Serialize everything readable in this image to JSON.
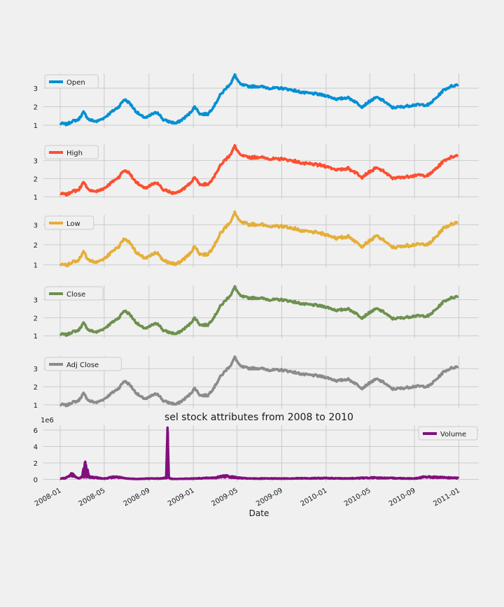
{
  "chart_data": {
    "type": "line",
    "title": "sel stock attributes from 2008 to 2010",
    "xlabel": "Date",
    "x_ticks": [
      "2008-01",
      "2008-05",
      "2008-09",
      "2009-01",
      "2009-05",
      "2009-09",
      "2010-01",
      "2010-05",
      "2010-09",
      "2011-01"
    ],
    "x_range": [
      "2008-01-01",
      "2010-12-31"
    ],
    "colors": {
      "Open": "#008fd5",
      "High": "#fc4f30",
      "Low": "#e5ae38",
      "Close": "#6d904f",
      "Adj Close": "#8b8b8b",
      "Volume": "#810f7c"
    },
    "legend_position": "top-left (Volume: top-right)",
    "grid": true,
    "price_panels": [
      {
        "name": "Open",
        "yticks": [
          1,
          2,
          3
        ],
        "ylim": [
          0.85,
          3.8
        ]
      },
      {
        "name": "High",
        "yticks": [
          1,
          2,
          3
        ],
        "ylim": [
          0.9,
          3.9
        ]
      },
      {
        "name": "Low",
        "yticks": [
          1,
          2,
          3
        ],
        "ylim": [
          0.85,
          3.5
        ]
      },
      {
        "name": "Close",
        "yticks": [
          1,
          2,
          3
        ],
        "ylim": [
          0.85,
          3.8
        ]
      },
      {
        "name": "Adj Close",
        "yticks": [
          1,
          2,
          3
        ],
        "ylim": [
          0.8,
          3.7
        ]
      }
    ],
    "volume_panel": {
      "name": "Volume",
      "offset_label": "1e6",
      "yticks": [
        "0",
        "2",
        "4",
        "6"
      ],
      "ylim": [
        -0.3,
        6.6
      ],
      "unit_scale": 1000000
    },
    "series": [
      {
        "name": "Close",
        "x": [
          "2008-01-01",
          "2008-01-20",
          "2008-02-01",
          "2008-02-20",
          "2008-03-05",
          "2008-03-20",
          "2008-04-10",
          "2008-05-01",
          "2008-05-20",
          "2008-06-10",
          "2008-06-25",
          "2008-07-10",
          "2008-07-25",
          "2008-08-10",
          "2008-08-25",
          "2008-09-10",
          "2008-09-25",
          "2008-10-10",
          "2008-10-25",
          "2008-11-15",
          "2008-12-01",
          "2008-12-20",
          "2009-01-05",
          "2009-01-20",
          "2009-02-10",
          "2009-03-01",
          "2009-03-15",
          "2009-04-01",
          "2009-04-15",
          "2009-04-25",
          "2009-05-10",
          "2009-06-01",
          "2009-07-01",
          "2009-08-01",
          "2009-09-01",
          "2009-10-01",
          "2009-11-01",
          "2009-12-01",
          "2010-01-01",
          "2010-02-01",
          "2010-03-01",
          "2010-03-20",
          "2010-04-10",
          "2010-05-01",
          "2010-05-20",
          "2010-06-10",
          "2010-07-01",
          "2010-08-01",
          "2010-09-01",
          "2010-09-20",
          "2010-10-10",
          "2010-11-01",
          "2010-11-20",
          "2010-12-10",
          "2010-12-31"
        ],
        "values": [
          1.1,
          1.05,
          1.2,
          1.3,
          1.7,
          1.3,
          1.2,
          1.4,
          1.7,
          2.0,
          2.4,
          2.2,
          1.8,
          1.5,
          1.4,
          1.6,
          1.7,
          1.3,
          1.2,
          1.1,
          1.3,
          1.6,
          2.0,
          1.6,
          1.6,
          2.1,
          2.6,
          3.0,
          3.3,
          3.7,
          3.2,
          3.1,
          3.1,
          3.0,
          3.0,
          2.9,
          2.75,
          2.7,
          2.6,
          2.4,
          2.5,
          2.3,
          2.0,
          2.3,
          2.5,
          2.3,
          1.95,
          2.0,
          2.1,
          2.1,
          2.1,
          2.5,
          2.9,
          3.1,
          3.2
        ]
      },
      {
        "name": "Volume",
        "x": [
          "2008-01-01",
          "2008-01-15",
          "2008-02-01",
          "2008-02-20",
          "2008-03-01",
          "2008-03-10",
          "2008-03-20",
          "2008-04-10",
          "2008-05-01",
          "2008-06-01",
          "2008-07-01",
          "2008-08-01",
          "2008-09-01",
          "2008-10-01",
          "2008-10-20",
          "2008-10-22",
          "2008-10-25",
          "2008-10-28",
          "2008-11-15",
          "2009-01-01",
          "2009-03-01",
          "2009-04-01",
          "2009-05-01",
          "2009-06-01",
          "2009-09-01",
          "2010-01-01",
          "2010-03-01",
          "2010-05-01",
          "2010-09-01",
          "2010-10-01",
          "2010-12-31"
        ],
        "values": [
          0.1,
          0.15,
          0.6,
          0.1,
          0.3,
          1.9,
          0.3,
          0.2,
          0.1,
          0.3,
          0.1,
          0.05,
          0.1,
          0.1,
          0.2,
          6.3,
          0.3,
          0.1,
          0.05,
          0.1,
          0.2,
          0.4,
          0.2,
          0.1,
          0.1,
          0.15,
          0.1,
          0.2,
          0.1,
          0.3,
          0.15
        ]
      }
    ]
  }
}
